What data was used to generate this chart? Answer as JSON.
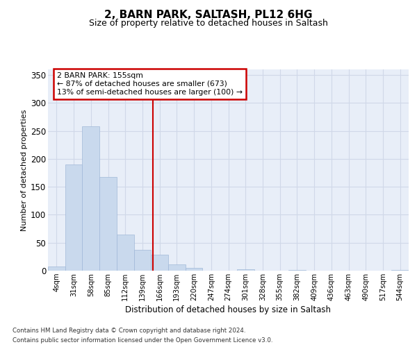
{
  "title1": "2, BARN PARK, SALTASH, PL12 6HG",
  "title2": "Size of property relative to detached houses in Saltash",
  "xlabel": "Distribution of detached houses by size in Saltash",
  "ylabel": "Number of detached properties",
  "bin_labels": [
    "4sqm",
    "31sqm",
    "58sqm",
    "85sqm",
    "112sqm",
    "139sqm",
    "166sqm",
    "193sqm",
    "220sqm",
    "247sqm",
    "274sqm",
    "301sqm",
    "328sqm",
    "355sqm",
    "382sqm",
    "409sqm",
    "436sqm",
    "463sqm",
    "490sqm",
    "517sqm",
    "544sqm"
  ],
  "bar_values": [
    8,
    190,
    258,
    167,
    65,
    37,
    28,
    11,
    5,
    0,
    0,
    3,
    0,
    0,
    1,
    0,
    0,
    0,
    0,
    0,
    1
  ],
  "bar_color": "#c9d9ed",
  "bar_edge_color": "#a0b8d8",
  "grid_color": "#d0d8e8",
  "background_color": "#e8eef8",
  "red_line_color": "#cc0000",
  "annotation_line1": "2 BARN PARK: 155sqm",
  "annotation_line2": "← 87% of detached houses are smaller (673)",
  "annotation_line3": "13% of semi-detached houses are larger (100) →",
  "annotation_box_color": "#ffffff",
  "annotation_box_edge": "#cc0000",
  "ylim": [
    0,
    360
  ],
  "yticks": [
    0,
    50,
    100,
    150,
    200,
    250,
    300,
    350
  ],
  "footer1": "Contains HM Land Registry data © Crown copyright and database right 2024.",
  "footer2": "Contains public sector information licensed under the Open Government Licence v3.0.",
  "title1_fontsize": 11,
  "title2_fontsize": 9,
  "red_line_index": 5.59
}
